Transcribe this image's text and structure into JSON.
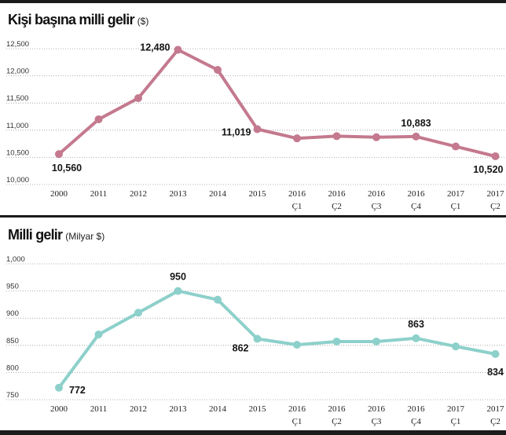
{
  "chart_data": [
    {
      "type": "line",
      "title": "Kişi başına milli gelir",
      "title_unit": "($)",
      "categories": [
        {
          "year": "2000"
        },
        {
          "year": "2011"
        },
        {
          "year": "2012"
        },
        {
          "year": "2013"
        },
        {
          "year": "2014"
        },
        {
          "year": "2015"
        },
        {
          "year": "2016",
          "quarter": "Ç1"
        },
        {
          "year": "2016",
          "quarter": "Ç2"
        },
        {
          "year": "2016",
          "quarter": "Ç3"
        },
        {
          "year": "2016",
          "quarter": "Ç4"
        },
        {
          "year": "2017",
          "quarter": "Ç1"
        },
        {
          "year": "2017",
          "quarter": "Ç2"
        }
      ],
      "values": [
        10560,
        11200,
        11590,
        12480,
        12110,
        11019,
        10850,
        10890,
        10870,
        10883,
        10700,
        10520
      ],
      "value_labels": [
        "10,560",
        null,
        null,
        "12,480",
        null,
        "11,019",
        null,
        null,
        null,
        "10,883",
        null,
        "10,520"
      ],
      "ylim": [
        10000,
        12500
      ],
      "yticks": [
        10000,
        10500,
        11000,
        11500,
        12000,
        12500
      ],
      "ytick_labels": [
        "10,000",
        "10,500",
        "11,000",
        "11,500",
        "12,000",
        "12,500"
      ],
      "grid": true,
      "color": "#c4798e"
    },
    {
      "type": "line",
      "title": "Milli gelir",
      "title_unit": "(Milyar $)",
      "categories": [
        {
          "year": "2000"
        },
        {
          "year": "2011"
        },
        {
          "year": "2012"
        },
        {
          "year": "2013"
        },
        {
          "year": "2014"
        },
        {
          "year": "2015"
        },
        {
          "year": "2016",
          "quarter": "Ç1"
        },
        {
          "year": "2016",
          "quarter": "Ç2"
        },
        {
          "year": "2016",
          "quarter": "Ç3"
        },
        {
          "year": "2016",
          "quarter": "Ç4"
        },
        {
          "year": "2017",
          "quarter": "Ç1"
        },
        {
          "year": "2017",
          "quarter": "Ç2"
        }
      ],
      "values": [
        772,
        870,
        910,
        950,
        934,
        862,
        851,
        857,
        857,
        863,
        848,
        834
      ],
      "value_labels": [
        "772",
        null,
        null,
        "950",
        null,
        "862",
        null,
        null,
        null,
        "863",
        null,
        "834"
      ],
      "ylim": [
        750,
        1000
      ],
      "yticks": [
        750,
        800,
        850,
        900,
        950,
        1000
      ],
      "ytick_labels": [
        "750",
        "800",
        "850",
        "900",
        "950",
        "1,000"
      ],
      "grid": true,
      "color": "#8dd0cb"
    }
  ]
}
